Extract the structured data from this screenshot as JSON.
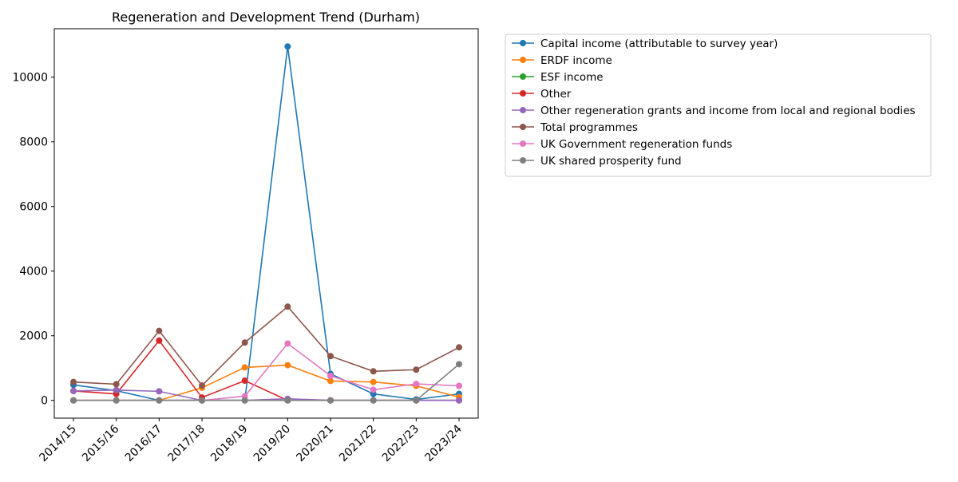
{
  "chart_data": {
    "type": "line",
    "title": "Regeneration and Development Trend (Durham)",
    "xlabel": "",
    "ylabel": "",
    "categories": [
      "2014/15",
      "2015/16",
      "2016/17",
      "2017/18",
      "2018/19",
      "2019/20",
      "2020/21",
      "2021/22",
      "2022/23",
      "2023/24"
    ],
    "ylim": [
      -550,
      11500
    ],
    "yticks": [
      0,
      2000,
      4000,
      6000,
      8000,
      10000
    ],
    "grid": false,
    "legend_position": "outside-right-top",
    "series": [
      {
        "name": "Capital income (attributable to survey year)",
        "color": "#1f77b4",
        "values": [
          480,
          300,
          0,
          0,
          0,
          10950,
          820,
          200,
          30,
          200
        ]
      },
      {
        "name": "ERDF income",
        "color": "#ff7f0e",
        "values": [
          0,
          0,
          0,
          390,
          1020,
          1090,
          600,
          570,
          450,
          100
        ]
      },
      {
        "name": "ESF income",
        "color": "#2ca02c",
        "values": [
          0,
          0,
          0,
          0,
          0,
          0,
          0,
          0,
          0,
          0
        ]
      },
      {
        "name": "Other",
        "color": "#d62728",
        "values": [
          290,
          200,
          1850,
          90,
          610,
          0,
          0,
          0,
          0,
          0
        ]
      },
      {
        "name": "Other regeneration grants and income from local and regional bodies",
        "color": "#9467bd",
        "values": [
          290,
          320,
          280,
          0,
          0,
          50,
          0,
          0,
          0,
          0
        ]
      },
      {
        "name": "Total programmes",
        "color": "#8c564b",
        "values": [
          570,
          500,
          2150,
          460,
          1790,
          2900,
          1370,
          900,
          950,
          1640
        ]
      },
      {
        "name": "UK Government regeneration funds",
        "color": "#e377c2",
        "values": [
          0,
          0,
          0,
          0,
          130,
          1760,
          760,
          330,
          510,
          450
        ]
      },
      {
        "name": "UK shared prosperity fund",
        "color": "#7f7f7f",
        "values": [
          0,
          0,
          0,
          0,
          0,
          0,
          0,
          0,
          0,
          1120
        ]
      }
    ]
  }
}
